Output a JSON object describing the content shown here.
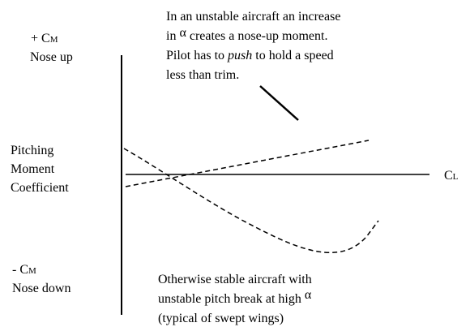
{
  "y_axis": {
    "top": {
      "sign": "+ C",
      "sub": "M",
      "label": "Nose up"
    },
    "bottom": {
      "sign": "- C",
      "sub": "M",
      "label": "Nose down"
    },
    "title": [
      "Pitching",
      "Moment",
      "Coefficient"
    ]
  },
  "x_axis": {
    "symbol": "C",
    "sub": "L"
  },
  "unstable_note": {
    "line1": "In an unstable aircraft an increase",
    "line2": [
      "in ",
      "α",
      " creates a nose-up moment."
    ],
    "line3": [
      "Pilot has to ",
      "push",
      " to hold a speed"
    ],
    "line4": "less than trim."
  },
  "stable_note": {
    "line1": "Otherwise stable aircraft with",
    "line2": [
      "unstable pitch break at high ",
      "α"
    ],
    "line3": "(typical of swept wings)"
  }
}
